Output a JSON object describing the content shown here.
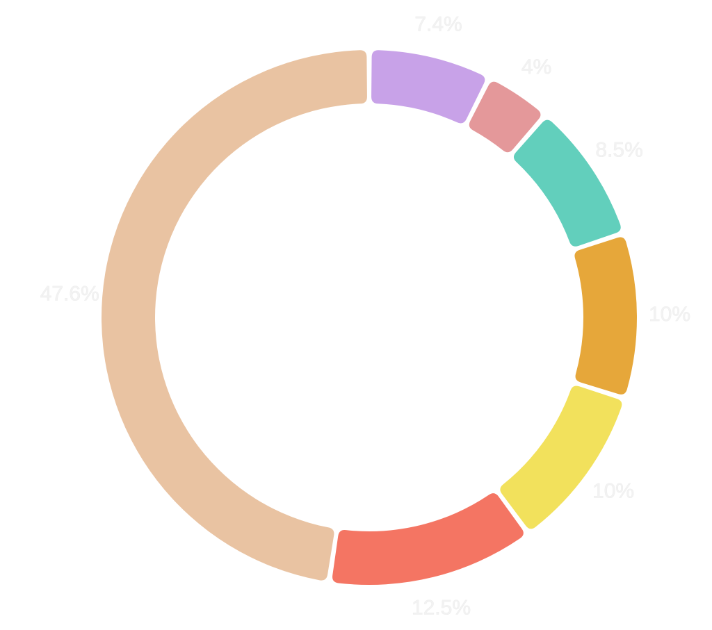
{
  "chart_data": {
    "type": "pie",
    "variant": "donut",
    "start_angle_deg": 0,
    "direction": "clockwise",
    "slices": [
      {
        "value": 7.4,
        "label": "7.4%",
        "color": "#c8a2e8"
      },
      {
        "value": 4,
        "label": "4%",
        "color": "#e4989a"
      },
      {
        "value": 8.5,
        "label": "8.5%",
        "color": "#62cfbc"
      },
      {
        "value": 10,
        "label": "10%",
        "color": "#e6a73a"
      },
      {
        "value": 10,
        "label": "10%",
        "color": "#f2e15c"
      },
      {
        "value": 12.5,
        "label": "12.5%",
        "color": "#f47563"
      },
      {
        "value": 47.6,
        "label": "47.6%",
        "color": "#e9c3a2"
      }
    ],
    "legend": "none",
    "title": ""
  }
}
